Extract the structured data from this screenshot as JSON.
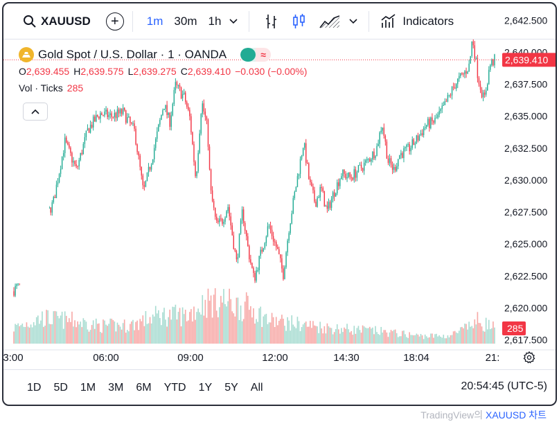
{
  "toolbar": {
    "symbol": "XAUUSD",
    "intervals": [
      "1m",
      "30m",
      "1h"
    ],
    "active_interval": "1m",
    "indicators_label": "Indicators",
    "icons": [
      "search-icon",
      "add-symbol-icon",
      "chevron-down-icon",
      "bar-style-icon",
      "candle-style-icon",
      "area-style-icon",
      "chevron-down-icon",
      "indicators-icon"
    ]
  },
  "legend": {
    "title": "Gold Spot / U.S. Dollar · 1 · OANDA",
    "open_label": "O",
    "open": "2,639.455",
    "high_label": "H",
    "high": "2,639.575",
    "low_label": "L",
    "low": "2,639.275",
    "close_label": "C",
    "close": "2,639.410",
    "change": "−0.030 (−0.00%)",
    "volume_label": "Vol · Ticks",
    "volume_value": "285"
  },
  "bottom": {
    "ranges": [
      "1D",
      "5D",
      "1M",
      "3M",
      "6M",
      "YTD",
      "1Y",
      "5Y",
      "All"
    ],
    "clock": "20:54:45 (UTC-5)"
  },
  "attribution": {
    "prefix": "TradingView의 ",
    "link": "XAUUSD 차트"
  },
  "colors": {
    "up": "#22ab94",
    "down": "#f23645",
    "accent": "#2962ff",
    "vol_up": "#a8dcd1",
    "vol_down": "#f7a9a7"
  },
  "chart_data": {
    "type": "candlestick",
    "ylim": [
      2620.0,
      2643.5
    ],
    "y_ticks": [
      "2,642.500",
      "2,640.000",
      "2,637.500",
      "2,635.000",
      "2,632.500",
      "2,630.000",
      "2,627.500",
      "2,625.000",
      "2,622.500",
      "2,620.000",
      "2,617.500"
    ],
    "y_tick_values": [
      2642.5,
      2640.0,
      2637.5,
      2635.0,
      2632.5,
      2630.0,
      2627.5,
      2625.0,
      2622.5,
      2620.0,
      2617.5
    ],
    "x_ticks": [
      "3:00",
      "06:00",
      "09:00",
      "12:00",
      "14:30",
      "18:04",
      "21:"
    ],
    "last_price": "2,639.410",
    "last_price_value": 2639.41,
    "last_volume": "285",
    "price_path": [
      [
        0,
        2621.3
      ],
      [
        3,
        2622.6
      ],
      [
        5,
        2626.5
      ],
      [
        7,
        2628.2
      ],
      [
        9,
        2633.0
      ],
      [
        11,
        2630.8
      ],
      [
        13,
        2634.0
      ],
      [
        15,
        2635.2
      ],
      [
        17,
        2635.0
      ],
      [
        19,
        2635.3
      ],
      [
        21,
        2633.8
      ],
      [
        22.5,
        2629.0
      ],
      [
        24,
        2631.8
      ],
      [
        26,
        2636.0
      ],
      [
        27,
        2634.5
      ],
      [
        28,
        2637.4
      ],
      [
        29.5,
        2636.5
      ],
      [
        30.5,
        2634.8
      ],
      [
        31.5,
        2630.0
      ],
      [
        32.5,
        2636.2
      ],
      [
        33.5,
        2634.0
      ],
      [
        34,
        2629.2
      ],
      [
        35,
        2626.5
      ],
      [
        36,
        2626.8
      ],
      [
        37,
        2628.0
      ],
      [
        38.5,
        2623.5
      ],
      [
        39.5,
        2627.6
      ],
      [
        40.5,
        2624.5
      ],
      [
        41.5,
        2622.2
      ],
      [
        42.5,
        2624.0
      ],
      [
        44,
        2626.5
      ],
      [
        45.5,
        2624.5
      ],
      [
        46.5,
        2622.6
      ],
      [
        47.5,
        2626.3
      ],
      [
        48.5,
        2629.0
      ],
      [
        50,
        2633.0
      ],
      [
        51,
        2629.8
      ],
      [
        52,
        2628.2
      ],
      [
        53,
        2629.4
      ],
      [
        54,
        2627.5
      ],
      [
        55,
        2628.8
      ],
      [
        56.5,
        2630.5
      ],
      [
        58,
        2630.2
      ],
      [
        59.5,
        2630.8
      ],
      [
        61,
        2631.5
      ],
      [
        62.5,
        2632.4
      ],
      [
        63.5,
        2634.5
      ],
      [
        64.5,
        2631.5
      ],
      [
        65.5,
        2630.8
      ],
      [
        66.5,
        2632.0
      ],
      [
        68,
        2632.4
      ],
      [
        69.5,
        2633.2
      ],
      [
        71,
        2634.3
      ],
      [
        72.5,
        2634.6
      ],
      [
        74,
        2635.6
      ],
      [
        76,
        2637.5
      ],
      [
        77.5,
        2638.3
      ],
      [
        78.5,
        2639.0
      ],
      [
        79,
        2641.2
      ],
      [
        80,
        2638.0
      ],
      [
        81,
        2636.2
      ],
      [
        82,
        2639.0
      ],
      [
        82.8,
        2639.41
      ]
    ],
    "volume_path": [
      [
        0,
        0.3
      ],
      [
        5,
        0.5
      ],
      [
        10,
        0.45
      ],
      [
        15,
        0.35
      ],
      [
        20,
        0.35
      ],
      [
        25,
        0.55
      ],
      [
        30,
        0.55
      ],
      [
        33,
        0.8
      ],
      [
        36,
        0.85
      ],
      [
        38,
        0.75
      ],
      [
        41,
        0.7
      ],
      [
        44,
        0.45
      ],
      [
        48,
        0.4
      ],
      [
        55,
        0.3
      ],
      [
        62,
        0.25
      ],
      [
        70,
        0.15
      ],
      [
        75,
        0.15
      ],
      [
        78,
        0.3
      ],
      [
        80,
        0.45
      ],
      [
        82.8,
        0.3
      ]
    ],
    "x_domain": [
      0,
      82.8
    ]
  }
}
